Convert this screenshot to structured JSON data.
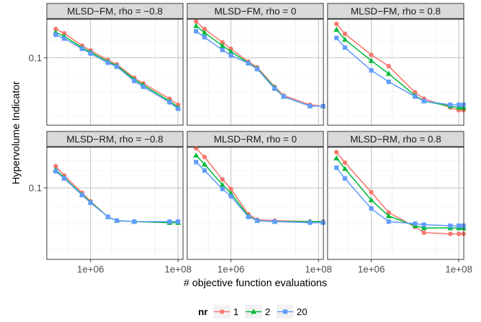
{
  "chart_data": {
    "type": "line",
    "xlabel": "# objective function evaluations",
    "ylabel": "Hypervolume Indicator",
    "xscale": "log",
    "yscale": "log",
    "xlim": [
      100000,
      130000000
    ],
    "ylim": [
      0.025,
      0.22
    ],
    "xticks": [
      {
        "value": 1000000,
        "label": "1e+06"
      },
      {
        "value": 100000000,
        "label": "1e+08"
      }
    ],
    "yticks": [
      {
        "value": 0.1,
        "label": "0.1"
      }
    ],
    "grid": true,
    "legend": {
      "title": "nr",
      "position": "bottom",
      "entries": [
        "1",
        "2",
        "20"
      ]
    },
    "colors": {
      "1": "#F8766D",
      "2": "#00BA38",
      "20": "#619CFF"
    },
    "markers": {
      "1": "circle",
      "2": "triangle",
      "20": "square"
    },
    "x": [
      160000,
      250000,
      640000,
      1000000,
      2500000,
      4000000,
      10000000,
      16000000,
      64000000,
      100000000,
      128000000
    ],
    "panels": [
      {
        "strip": "MLSD−FM, rho = −0.8",
        "series": [
          {
            "name": "1",
            "values": [
              0.18,
              0.165,
              0.128,
              0.116,
              0.095,
              0.087,
              0.066,
              0.059,
              0.043,
              0.038,
              null
            ]
          },
          {
            "name": "2",
            "values": [
              0.168,
              0.155,
              0.123,
              0.112,
              0.092,
              0.085,
              0.064,
              0.057,
              0.041,
              0.036,
              null
            ]
          },
          {
            "name": "20",
            "values": [
              0.16,
              0.148,
              0.12,
              0.109,
              0.09,
              0.083,
              0.062,
              0.055,
              0.04,
              0.035,
              null
            ]
          }
        ]
      },
      {
        "strip": "MLSD−FM, rho = 0",
        "series": [
          {
            "name": "1",
            "values": [
              0.21,
              0.18,
              0.137,
              0.12,
              0.092,
              0.082,
              0.055,
              0.046,
              0.038,
              null,
              0.037
            ]
          },
          {
            "name": "2",
            "values": [
              0.192,
              0.167,
              0.128,
              0.113,
              0.09,
              0.08,
              0.054,
              0.045,
              0.037,
              null,
              0.037
            ]
          },
          {
            "name": "20",
            "values": [
              0.172,
              0.152,
              0.117,
              0.105,
              0.089,
              0.079,
              0.053,
              0.045,
              0.037,
              null,
              0.037
            ]
          }
        ]
      },
      {
        "strip": "MLSD−FM, rho = 0.8",
        "series": [
          {
            "name": "1",
            "values": [
              0.2,
              0.163,
              null,
              0.106,
              0.084,
              null,
              0.049,
              0.043,
              0.036,
              0.034,
              0.034
            ]
          },
          {
            "name": "2",
            "values": [
              0.178,
              0.145,
              null,
              0.094,
              0.072,
              null,
              0.046,
              0.041,
              0.037,
              0.036,
              0.036
            ]
          },
          {
            "name": "20",
            "values": [
              0.15,
              0.123,
              null,
              0.077,
              0.061,
              null,
              0.045,
              0.041,
              0.038,
              0.038,
              0.038
            ]
          }
        ]
      },
      {
        "strip": "MLSD−RM, rho = −0.8",
        "series": [
          {
            "name": "1",
            "values": [
              0.152,
              0.127,
              0.091,
              0.077,
              0.057,
              0.053,
              0.052,
              null,
              0.051,
              0.051,
              null
            ]
          },
          {
            "name": "2",
            "values": [
              0.142,
              0.122,
              0.088,
              0.076,
              0.057,
              0.053,
              0.052,
              null,
              0.051,
              0.051,
              null
            ]
          },
          {
            "name": "20",
            "values": [
              0.138,
              0.12,
              0.087,
              0.075,
              0.057,
              0.053,
              0.052,
              null,
              0.052,
              0.052,
              null
            ]
          }
        ]
      },
      {
        "strip": "MLSD−RM, rho = 0",
        "series": [
          {
            "name": "1",
            "values": [
              0.215,
              0.182,
              0.118,
              0.098,
              0.06,
              0.054,
              0.053,
              null,
              0.052,
              null,
              0.052
            ]
          },
          {
            "name": "2",
            "values": [
              0.188,
              0.158,
              0.106,
              0.09,
              0.058,
              0.053,
              0.052,
              null,
              0.052,
              null,
              0.052
            ]
          },
          {
            "name": "20",
            "values": [
              0.165,
              0.14,
              0.098,
              0.085,
              0.057,
              0.053,
              0.052,
              null,
              0.051,
              null,
              0.051
            ]
          }
        ]
      },
      {
        "strip": "MLSD−RM, rho = 0.8",
        "series": [
          {
            "name": "1",
            "values": [
              0.2,
              0.163,
              null,
              0.092,
              0.062,
              null,
              0.047,
              0.042,
              0.041,
              0.041,
              0.041
            ]
          },
          {
            "name": "2",
            "values": [
              0.178,
              0.145,
              null,
              0.079,
              0.058,
              null,
              0.048,
              0.046,
              0.046,
              0.046,
              0.046
            ]
          },
          {
            "name": "20",
            "values": [
              0.148,
              0.12,
              null,
              0.067,
              0.052,
              null,
              0.05,
              0.049,
              0.048,
              0.048,
              0.048
            ]
          }
        ]
      }
    ]
  }
}
